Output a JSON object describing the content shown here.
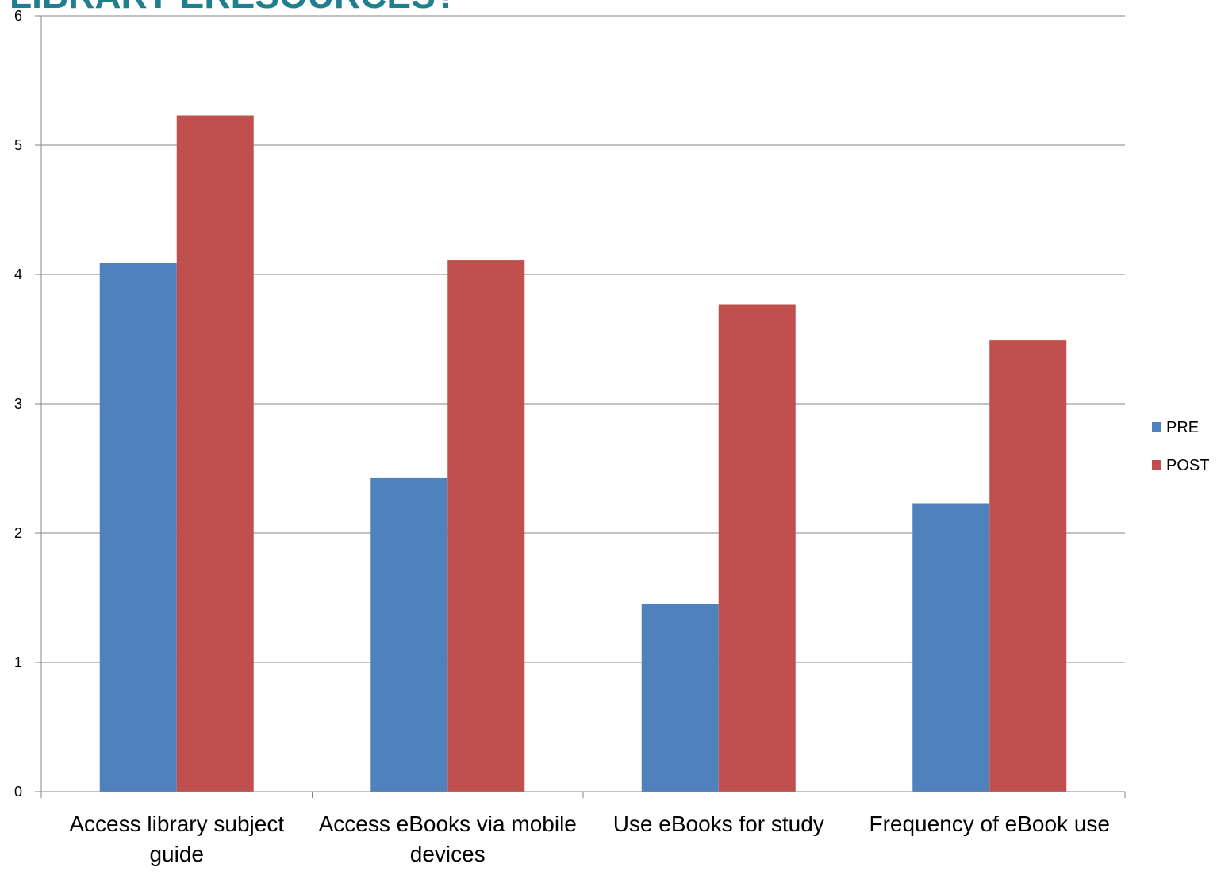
{
  "chart_data": {
    "type": "bar",
    "title": "LIBRARY ERESOURCES?",
    "categories": [
      "Access library subject guide",
      "Access eBooks via mobile devices",
      "Use eBooks for study",
      "Frequency of eBook use"
    ],
    "series": [
      {
        "name": "PRE",
        "color": "#4f81bd",
        "values": [
          4.09,
          2.43,
          1.45,
          2.23
        ]
      },
      {
        "name": "POST",
        "color": "#c0504d",
        "values": [
          5.23,
          4.11,
          3.77,
          3.49
        ]
      }
    ],
    "ylim": [
      0,
      6
    ],
    "yticks": [
      0,
      1,
      2,
      3,
      4,
      5,
      6
    ],
    "grid": true,
    "legend": "right"
  }
}
